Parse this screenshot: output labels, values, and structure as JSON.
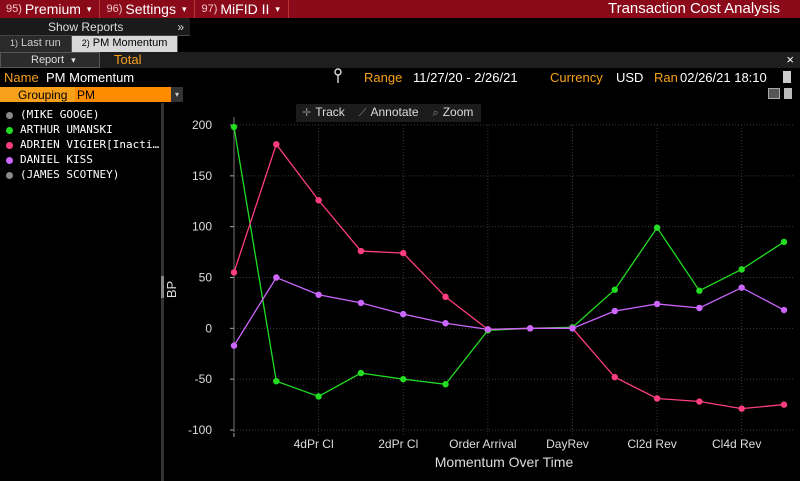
{
  "menubar": {
    "items": [
      {
        "num": "95)",
        "label": "Premium",
        "caret": "▾"
      },
      {
        "num": "96)",
        "label": "Settings",
        "caret": "▾"
      },
      {
        "num": "97)",
        "label": "MiFID II",
        "caret": "▾"
      }
    ],
    "title": "Transaction Cost Analysis"
  },
  "show_reports": {
    "label": "Show Reports",
    "arrows": "»"
  },
  "tabs": [
    {
      "num": "1)",
      "label": "Last run"
    },
    {
      "num": "2)",
      "label": "PM Momentum"
    }
  ],
  "report_row": {
    "report_label": "Report",
    "report_caret": "▾",
    "total_label": "Total",
    "close": "×"
  },
  "info": {
    "name_label": "Name",
    "name_value": "PM Momentum",
    "pin_icon": "pin-icon",
    "range_label": "Range",
    "range_value": "11/27/20 - 2/26/21",
    "currency_label": "Currency",
    "currency_value": "USD",
    "ran_label": "Ran",
    "ran_value": "02/26/21 18:10"
  },
  "grouping": {
    "label": "Grouping",
    "value": "PM",
    "caret": "▾"
  },
  "legend": [
    {
      "name": "(MIKE GOOGE)",
      "color": "#8a8a8a"
    },
    {
      "name": "ARTHUR UMANSKI",
      "color": "#22dd22"
    },
    {
      "name": "ADRIEN VIGIER[Inacti…",
      "color": "#ff3d7f"
    },
    {
      "name": "DANIEL KISS",
      "color": "#cc66ff"
    },
    {
      "name": "(JAMES SCOTNEY)",
      "color": "#8a8a8a"
    }
  ],
  "toolbar": [
    {
      "icon": "✛",
      "label": "Track"
    },
    {
      "icon": "⟋",
      "label": "Annotate"
    },
    {
      "icon": "⌕",
      "label": "Zoom"
    }
  ],
  "chart_data": {
    "type": "line",
    "title": "",
    "xlabel": "Momentum Over Time",
    "ylabel": "BP",
    "ylim": [
      -100,
      200
    ],
    "yticks": [
      200,
      150,
      100,
      50,
      0,
      -50,
      -100
    ],
    "x_tick_labels": [
      "4dPr Cl",
      "2dPr Cl",
      "Order Arrival",
      "DayRev",
      "Cl2d Rev",
      "Cl4d Rev"
    ],
    "x_tick_label_positions": [
      2,
      4,
      6,
      8,
      10,
      12
    ],
    "n_points": 14,
    "grid": true,
    "series": [
      {
        "name": "ARTHUR UMANSKI",
        "color": "#22dd22",
        "values": [
          198,
          -52,
          -67,
          -44,
          -50,
          -55,
          -2,
          0,
          1,
          38,
          99,
          37,
          58,
          85
        ]
      },
      {
        "name": "ADRIEN VIGIER[Inacti…",
        "color": "#ff3d7f",
        "values": [
          55,
          181,
          126,
          76,
          74,
          31,
          -1,
          0,
          0,
          -48,
          -69,
          -72,
          -79,
          -75
        ]
      },
      {
        "name": "DANIEL KISS",
        "color": "#cc66ff",
        "values": [
          -17,
          50,
          33,
          25,
          14,
          5,
          -1,
          0,
          0,
          17,
          24,
          20,
          40,
          18
        ]
      }
    ]
  }
}
